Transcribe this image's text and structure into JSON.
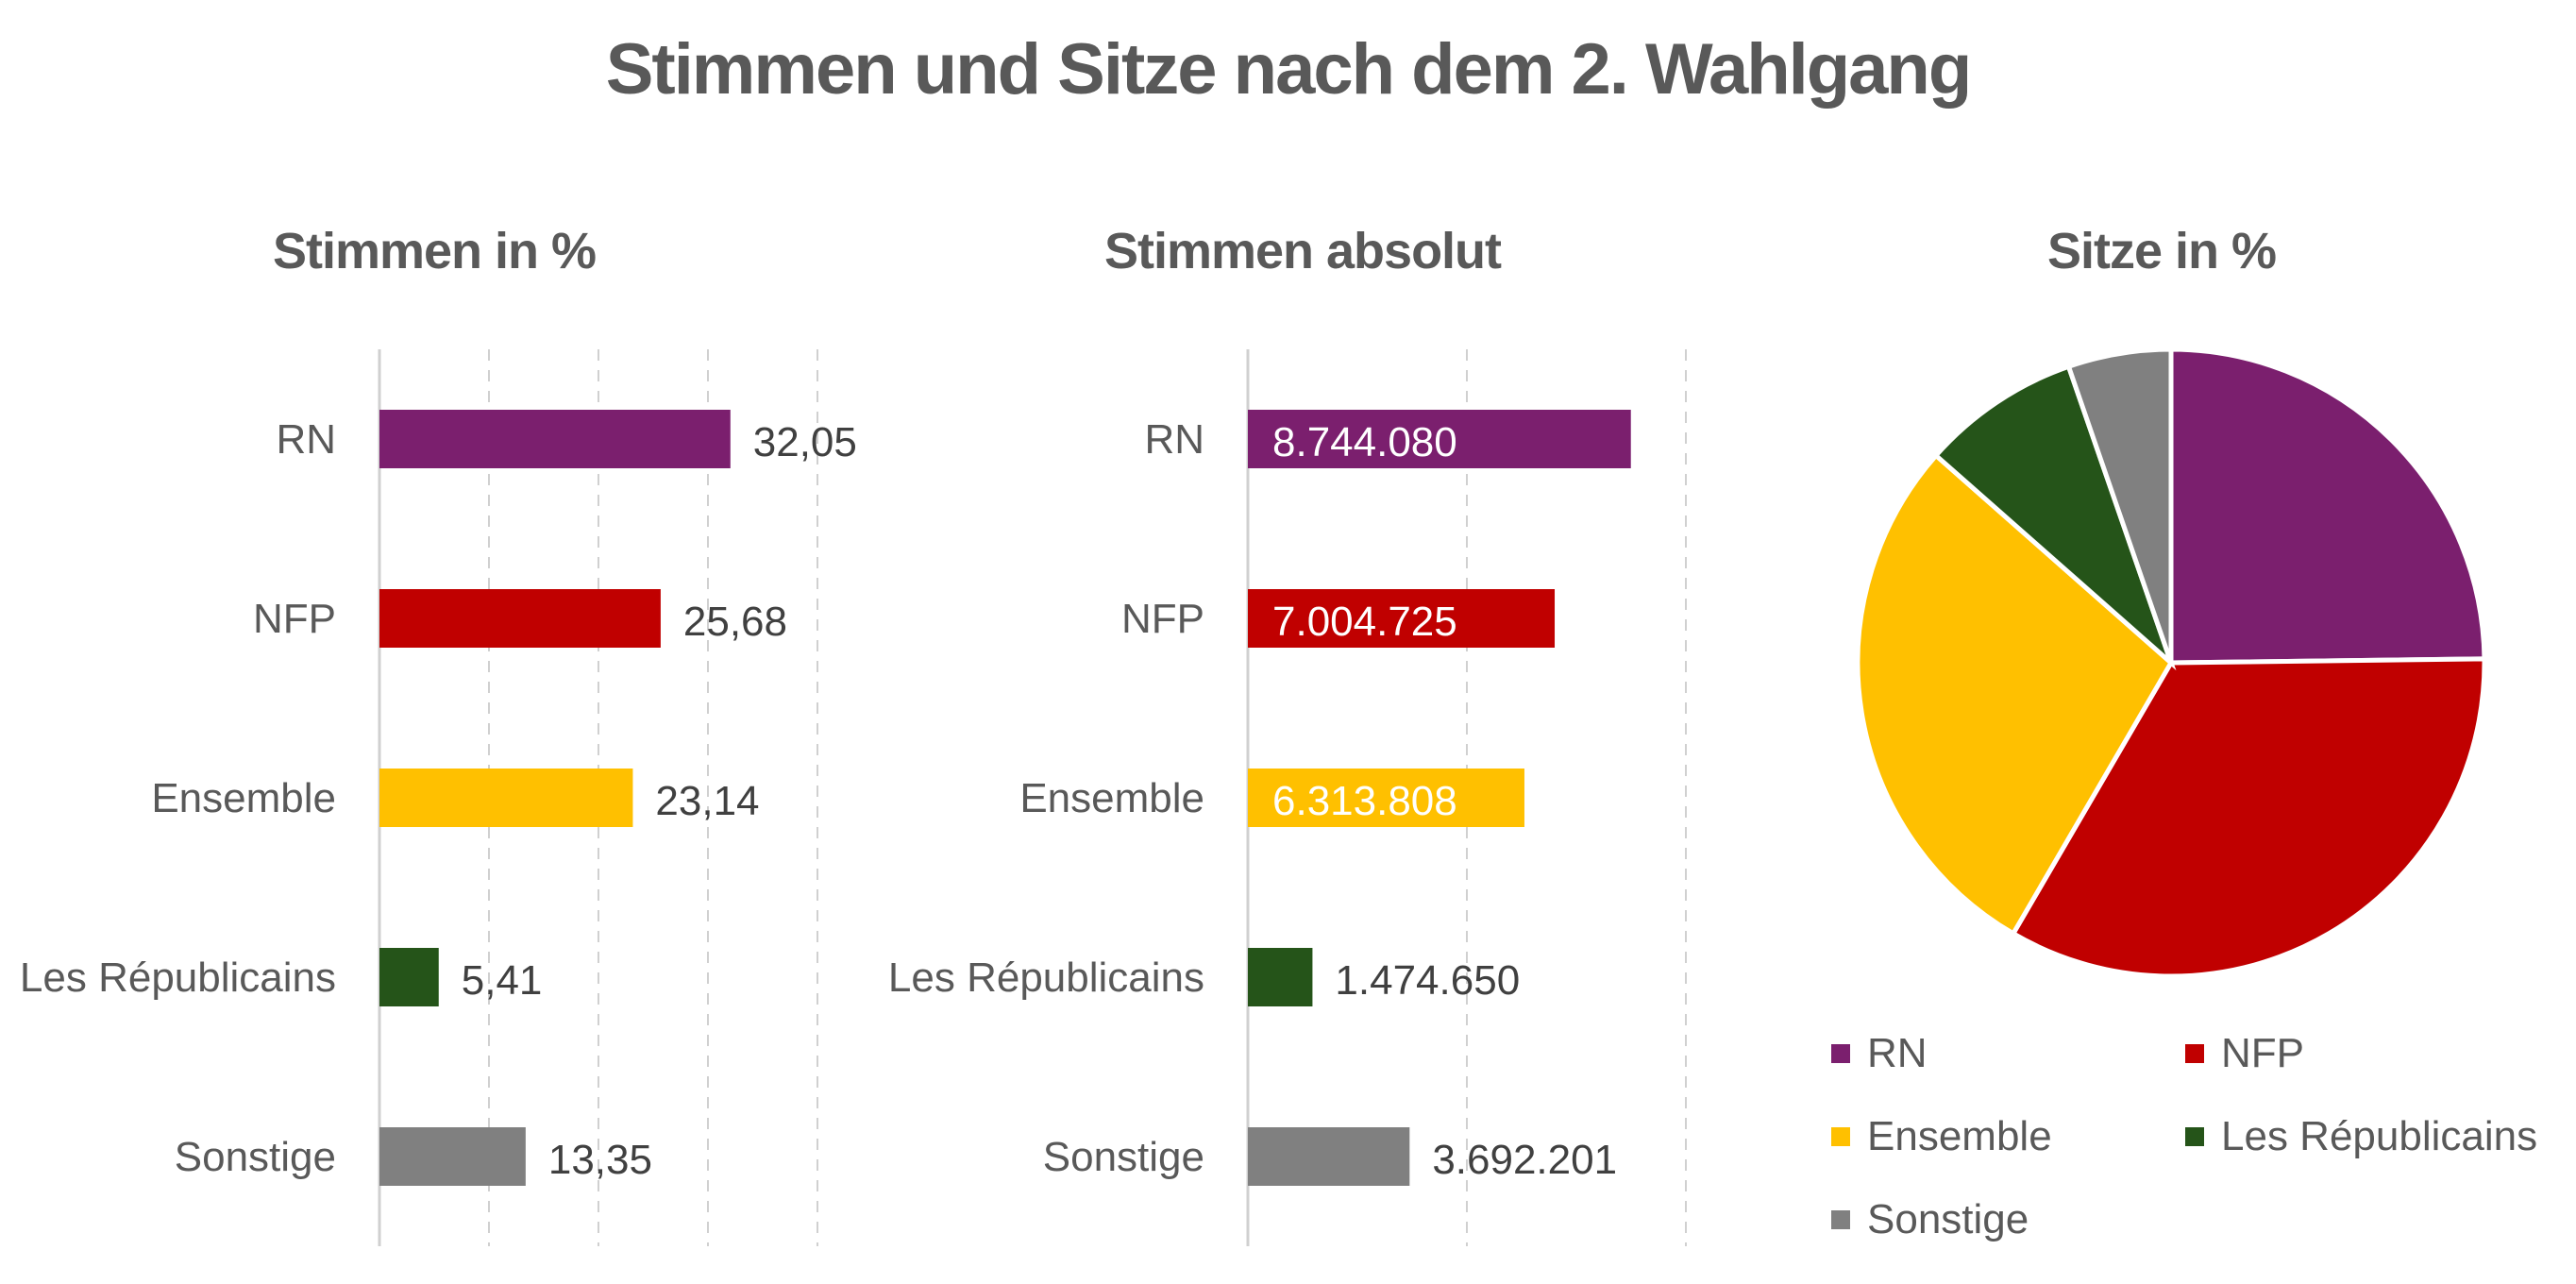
{
  "title": "Stimmen und Sitze nach dem 2. Wahlgang",
  "colors": {
    "RN": "#7B1F6E",
    "NFP": "#C00000",
    "Ensemble": "#FFC000",
    "Les Républicains": "#255419",
    "Sonstige": "#808080"
  },
  "chart_data": [
    {
      "type": "bar",
      "orientation": "horizontal",
      "title": "Stimmen in %",
      "categories": [
        "RN",
        "NFP",
        "Ensemble",
        "Les Républicains",
        "Sonstige"
      ],
      "values": [
        32.05,
        25.68,
        23.14,
        5.41,
        13.35
      ],
      "labels": [
        "32,05",
        "25,68",
        "23,14",
        "5,41",
        "13,35"
      ],
      "xlim": [
        0,
        40
      ],
      "grid": "vertical dashed"
    },
    {
      "type": "bar",
      "orientation": "horizontal",
      "title": "Stimmen absolut",
      "categories": [
        "RN",
        "NFP",
        "Ensemble",
        "Les Républicains",
        "Sonstige"
      ],
      "values": [
        8744080,
        7004725,
        6313808,
        1474650,
        3692201
      ],
      "labels": [
        "8.744.080",
        "7.004.725",
        "6.313.808",
        "1.474.650",
        "3.692.201"
      ],
      "xlim": [
        0,
        10000000
      ],
      "grid": "vertical dashed"
    },
    {
      "type": "pie",
      "title": "Sitze in %",
      "categories": [
        "RN",
        "NFP",
        "Ensemble",
        "Les Républicains",
        "Sonstige"
      ],
      "values": [
        24.8,
        33.6,
        28.1,
        8.2,
        5.3
      ],
      "legend": "bottom"
    }
  ]
}
